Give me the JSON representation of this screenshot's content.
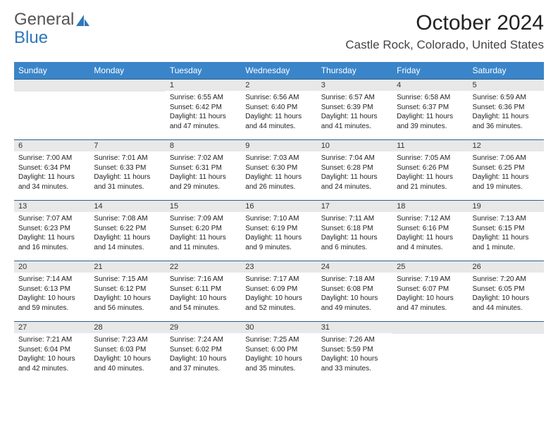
{
  "brand": {
    "word1": "General",
    "word2": "Blue"
  },
  "title": "October 2024",
  "location": "Castle Rock, Colorado, United States",
  "colors": {
    "header_bg": "#3a85c9",
    "header_text": "#ffffff",
    "daynum_bg": "#e8e8e8",
    "rule": "#2f5f8a",
    "brand_gray": "#555555",
    "brand_blue": "#2f77b8"
  },
  "weekdays": [
    "Sunday",
    "Monday",
    "Tuesday",
    "Wednesday",
    "Thursday",
    "Friday",
    "Saturday"
  ],
  "first_weekday_index": 2,
  "days": [
    {
      "n": 1,
      "sunrise": "6:55 AM",
      "sunset": "6:42 PM",
      "daylight": "11 hours and 47 minutes."
    },
    {
      "n": 2,
      "sunrise": "6:56 AM",
      "sunset": "6:40 PM",
      "daylight": "11 hours and 44 minutes."
    },
    {
      "n": 3,
      "sunrise": "6:57 AM",
      "sunset": "6:39 PM",
      "daylight": "11 hours and 41 minutes."
    },
    {
      "n": 4,
      "sunrise": "6:58 AM",
      "sunset": "6:37 PM",
      "daylight": "11 hours and 39 minutes."
    },
    {
      "n": 5,
      "sunrise": "6:59 AM",
      "sunset": "6:36 PM",
      "daylight": "11 hours and 36 minutes."
    },
    {
      "n": 6,
      "sunrise": "7:00 AM",
      "sunset": "6:34 PM",
      "daylight": "11 hours and 34 minutes."
    },
    {
      "n": 7,
      "sunrise": "7:01 AM",
      "sunset": "6:33 PM",
      "daylight": "11 hours and 31 minutes."
    },
    {
      "n": 8,
      "sunrise": "7:02 AM",
      "sunset": "6:31 PM",
      "daylight": "11 hours and 29 minutes."
    },
    {
      "n": 9,
      "sunrise": "7:03 AM",
      "sunset": "6:30 PM",
      "daylight": "11 hours and 26 minutes."
    },
    {
      "n": 10,
      "sunrise": "7:04 AM",
      "sunset": "6:28 PM",
      "daylight": "11 hours and 24 minutes."
    },
    {
      "n": 11,
      "sunrise": "7:05 AM",
      "sunset": "6:26 PM",
      "daylight": "11 hours and 21 minutes."
    },
    {
      "n": 12,
      "sunrise": "7:06 AM",
      "sunset": "6:25 PM",
      "daylight": "11 hours and 19 minutes."
    },
    {
      "n": 13,
      "sunrise": "7:07 AM",
      "sunset": "6:23 PM",
      "daylight": "11 hours and 16 minutes."
    },
    {
      "n": 14,
      "sunrise": "7:08 AM",
      "sunset": "6:22 PM",
      "daylight": "11 hours and 14 minutes."
    },
    {
      "n": 15,
      "sunrise": "7:09 AM",
      "sunset": "6:20 PM",
      "daylight": "11 hours and 11 minutes."
    },
    {
      "n": 16,
      "sunrise": "7:10 AM",
      "sunset": "6:19 PM",
      "daylight": "11 hours and 9 minutes."
    },
    {
      "n": 17,
      "sunrise": "7:11 AM",
      "sunset": "6:18 PM",
      "daylight": "11 hours and 6 minutes."
    },
    {
      "n": 18,
      "sunrise": "7:12 AM",
      "sunset": "6:16 PM",
      "daylight": "11 hours and 4 minutes."
    },
    {
      "n": 19,
      "sunrise": "7:13 AM",
      "sunset": "6:15 PM",
      "daylight": "11 hours and 1 minute."
    },
    {
      "n": 20,
      "sunrise": "7:14 AM",
      "sunset": "6:13 PM",
      "daylight": "10 hours and 59 minutes."
    },
    {
      "n": 21,
      "sunrise": "7:15 AM",
      "sunset": "6:12 PM",
      "daylight": "10 hours and 56 minutes."
    },
    {
      "n": 22,
      "sunrise": "7:16 AM",
      "sunset": "6:11 PM",
      "daylight": "10 hours and 54 minutes."
    },
    {
      "n": 23,
      "sunrise": "7:17 AM",
      "sunset": "6:09 PM",
      "daylight": "10 hours and 52 minutes."
    },
    {
      "n": 24,
      "sunrise": "7:18 AM",
      "sunset": "6:08 PM",
      "daylight": "10 hours and 49 minutes."
    },
    {
      "n": 25,
      "sunrise": "7:19 AM",
      "sunset": "6:07 PM",
      "daylight": "10 hours and 47 minutes."
    },
    {
      "n": 26,
      "sunrise": "7:20 AM",
      "sunset": "6:05 PM",
      "daylight": "10 hours and 44 minutes."
    },
    {
      "n": 27,
      "sunrise": "7:21 AM",
      "sunset": "6:04 PM",
      "daylight": "10 hours and 42 minutes."
    },
    {
      "n": 28,
      "sunrise": "7:23 AM",
      "sunset": "6:03 PM",
      "daylight": "10 hours and 40 minutes."
    },
    {
      "n": 29,
      "sunrise": "7:24 AM",
      "sunset": "6:02 PM",
      "daylight": "10 hours and 37 minutes."
    },
    {
      "n": 30,
      "sunrise": "7:25 AM",
      "sunset": "6:00 PM",
      "daylight": "10 hours and 35 minutes."
    },
    {
      "n": 31,
      "sunrise": "7:26 AM",
      "sunset": "5:59 PM",
      "daylight": "10 hours and 33 minutes."
    }
  ],
  "labels": {
    "sunrise": "Sunrise:",
    "sunset": "Sunset:",
    "daylight": "Daylight:"
  }
}
